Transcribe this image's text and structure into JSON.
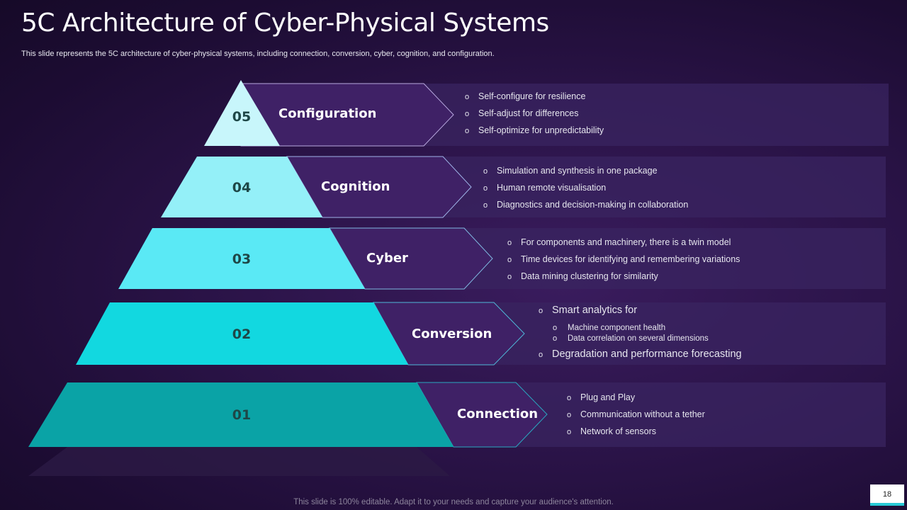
{
  "title": "5C Architecture of Cyber-Physical Systems",
  "subtitle": "This slide represents the 5C architecture of cyber-physical systems, including connection, conversion, cyber, cognition, and configuration.",
  "colors": {
    "level5": "#c8f6fb",
    "level4": "#94f0f8",
    "level3": "#5ae9f5",
    "level2": "#12d8e0",
    "level1": "#0aa3a6",
    "chevron": "#3f2166",
    "panel": "#3a2460"
  },
  "levels": [
    {
      "number": "05",
      "label": "Configuration",
      "bullets": [
        "Self-configure for resilience",
        "Self-adjust for differences",
        "Self-optimize for unpredictability"
      ]
    },
    {
      "number": "04",
      "label": "Cognition",
      "bullets": [
        "Simulation and synthesis in one package",
        "Human remote visualisation",
        "Diagnostics and decision-making in collaboration"
      ]
    },
    {
      "number": "03",
      "label": "Cyber",
      "bullets": [
        "For components and machinery, there is a twin model",
        "Time devices for identifying and remembering variations",
        "Data mining clustering for similarity"
      ]
    },
    {
      "number": "02",
      "label": "Conversion",
      "bullets": [
        "Smart analytics for",
        "Machine component health",
        "Data correlation on several dimensions",
        "Degradation and performance forecasting"
      ]
    },
    {
      "number": "01",
      "label": "Connection",
      "bullets": [
        "Plug and Play",
        "Communication without a tether",
        "Network of sensors"
      ]
    }
  ],
  "footer": "This slide is 100% editable. Adapt it to your needs and capture your audience's attention.",
  "page_number": "18"
}
